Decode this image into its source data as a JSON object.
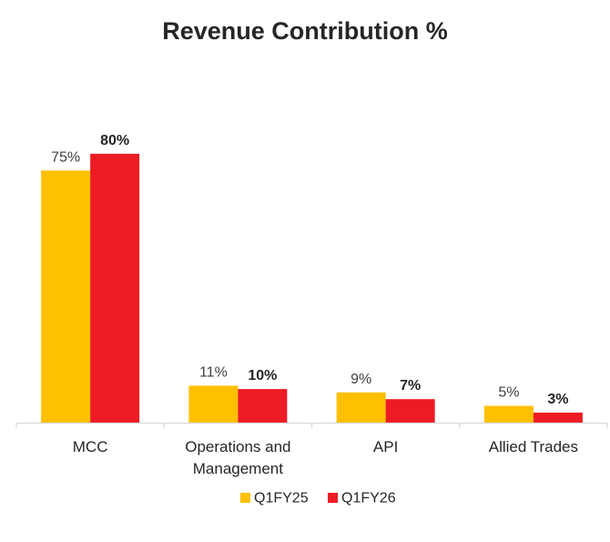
{
  "chart_data": {
    "type": "bar",
    "title": "Revenue Contribution %",
    "categories": [
      "MCC",
      [
        "Operations and",
        "Management"
      ],
      "API",
      "Allied Trades"
    ],
    "series": [
      {
        "name": "Q1FY25",
        "values": [
          75,
          11,
          9,
          5
        ],
        "labels": [
          "75%",
          "11%",
          "9%",
          "5%"
        ],
        "color": "#FFC000"
      },
      {
        "name": "Q1FY26",
        "values": [
          80,
          10,
          7,
          3
        ],
        "labels": [
          "80%",
          "10%",
          "7%",
          "3%"
        ],
        "color": "#ED1C24"
      }
    ],
    "ylim": [
      0,
      80
    ],
    "grid": false,
    "legend_position": "bottom"
  }
}
